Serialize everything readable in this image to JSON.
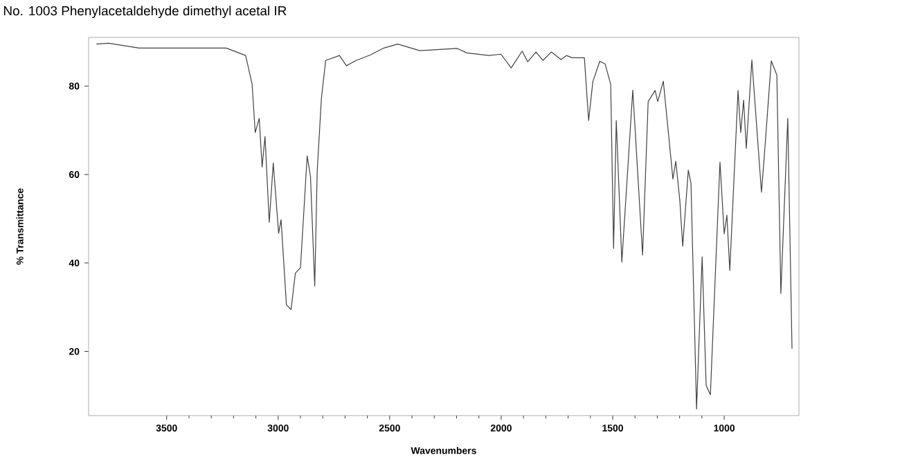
{
  "chart_data": {
    "type": "line",
    "title": "No. 1003 Phenylacetaldehyde dimethyl acetal IR",
    "xlabel": "Wavenumbers",
    "ylabel": "% Transmittance",
    "xlim": [
      3850,
      665
    ],
    "ylim": [
      5.5,
      91
    ],
    "xticks": [
      3500,
      3000,
      2500,
      2000,
      1500,
      1000
    ],
    "yticks": [
      20,
      40,
      60,
      80
    ],
    "grid": false,
    "marker": "none",
    "line_style": "solid",
    "series": [
      {
        "color": "#404040",
        "x": [
          3815,
          3760,
          3624,
          3480,
          3233,
          3146,
          3117,
          3103,
          3085,
          3072,
          3059,
          3040,
          3022,
          2998,
          2987,
          2963,
          2942,
          2923,
          2900,
          2870,
          2855,
          2836,
          2825,
          2806,
          2787,
          2725,
          2694,
          2650,
          2588,
          2526,
          2464,
          2365,
          2197,
          2154,
          2055,
          2001,
          1955,
          1906,
          1881,
          1844,
          1813,
          1775,
          1732,
          1707,
          1682,
          1627,
          1608,
          1589,
          1558,
          1534,
          1509,
          1496,
          1484,
          1459,
          1410,
          1366,
          1341,
          1310,
          1298,
          1273,
          1230,
          1217,
          1199,
          1186,
          1161,
          1149,
          1124,
          1099,
          1081,
          1062,
          1019,
          1000,
          988,
          975,
          938,
          926,
          913,
          901,
          876,
          833,
          820,
          789,
          764,
          746,
          715,
          696
        ],
        "values": [
          89.5,
          89.7,
          88.6,
          88.6,
          88.6,
          86.9,
          80.5,
          69.5,
          72.7,
          61.7,
          68.6,
          49.2,
          62.6,
          46.7,
          49.8,
          30.5,
          29.5,
          37.7,
          38.9,
          64.2,
          59.5,
          34.8,
          60.8,
          77.3,
          85.8,
          86.9,
          84.6,
          85.8,
          87.0,
          88.6,
          89.5,
          88.0,
          88.5,
          87.5,
          86.9,
          87.2,
          84.1,
          87.9,
          85.5,
          87.7,
          85.8,
          87.7,
          86.0,
          86.9,
          86.4,
          86.4,
          72.2,
          81.0,
          85.6,
          85.0,
          80.4,
          43.3,
          72.2,
          40.2,
          79.1,
          41.8,
          76.5,
          79.0,
          76.5,
          81.1,
          59.0,
          63.0,
          54.1,
          43.8,
          61.0,
          58.0,
          7.0,
          41.4,
          12.3,
          10.2,
          62.8,
          46.6,
          50.8,
          38.3,
          79.0,
          69.5,
          76.8,
          65.9,
          85.9,
          56.0,
          64.3,
          85.7,
          82.5,
          33.1,
          72.7,
          20.6
        ]
      }
    ]
  }
}
